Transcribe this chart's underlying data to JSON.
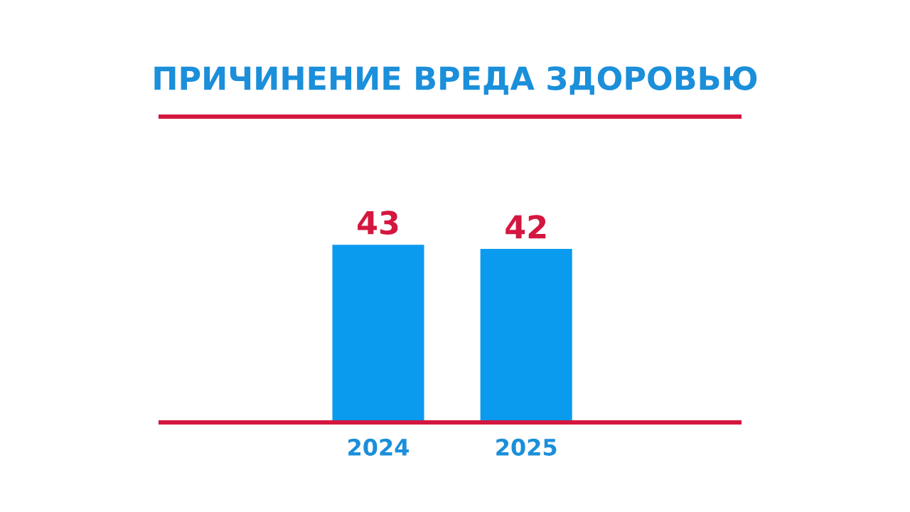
{
  "chart_data": {
    "type": "bar",
    "title": "ПРИЧИНЕНИЕ ВРЕДА ЗДОРОВЬЮ",
    "categories": [
      "2024",
      "2025"
    ],
    "values": [
      43,
      42
    ],
    "color": "#0a9bef",
    "ylim": [
      0,
      74
    ],
    "data_labels": true,
    "tick_labels": "x",
    "grid": false,
    "legend": false
  }
}
